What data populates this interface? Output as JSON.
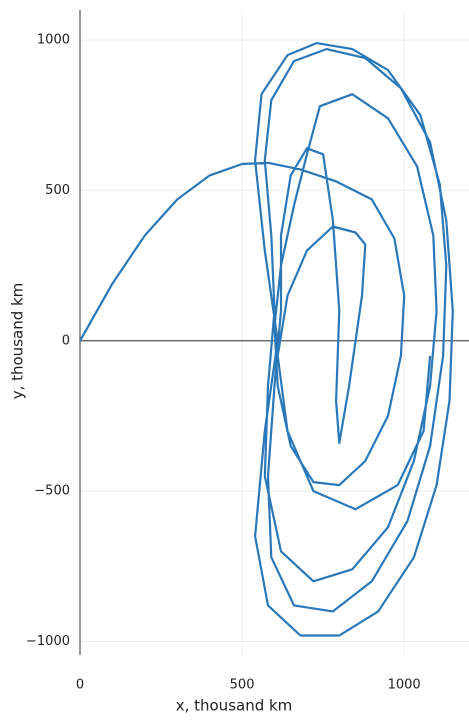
{
  "chart_data": {
    "type": "line",
    "x_label": "x, thousand km",
    "y_label": "y, thousand km",
    "x": [
      0,
      100,
      200,
      300,
      400,
      500,
      580,
      680,
      790,
      900,
      970,
      1000,
      990,
      950,
      880,
      800,
      720,
      650,
      610,
      600,
      620,
      660,
      700,
      740,
      840,
      950,
      1040,
      1090,
      1100,
      1080,
      1030,
      950,
      840,
      720,
      620,
      570,
      580,
      600,
      590,
      570,
      590,
      660,
      760,
      880,
      990,
      1080,
      1130,
      1150,
      1140,
      1100,
      1030,
      920,
      800,
      680,
      580,
      540,
      570,
      610,
      570,
      540,
      560,
      640,
      730,
      840,
      950,
      1050,
      1110,
      1130,
      1120,
      1080,
      1010,
      900,
      780,
      660,
      590,
      580,
      600,
      620,
      620,
      650,
      700,
      750,
      780,
      800,
      790,
      800,
      830,
      870,
      880,
      850,
      780,
      700,
      640,
      610,
      640,
      720,
      850,
      980,
      1060,
      1080
    ],
    "series": [
      {
        "color": "#2a78b8",
        "values": [
          0,
          190,
          350,
          470,
          550,
          588,
          592,
          570,
          530,
          470,
          340,
          150,
          -50,
          -250,
          -400,
          -480,
          -470,
          -350,
          -150,
          50,
          250,
          450,
          620,
          780,
          820,
          740,
          580,
          350,
          100,
          -150,
          -400,
          -620,
          -760,
          -800,
          -700,
          -450,
          -150,
          100,
          350,
          600,
          800,
          930,
          970,
          940,
          840,
          660,
          400,
          100,
          -200,
          -480,
          -720,
          -900,
          -980,
          -980,
          -880,
          -650,
          -300,
          0,
          300,
          600,
          820,
          950,
          990,
          970,
          900,
          750,
          520,
          250,
          -50,
          -350,
          -600,
          -800,
          -900,
          -880,
          -720,
          -450,
          -150,
          100,
          350,
          550,
          640,
          620,
          400,
          100,
          -200,
          -340,
          -150,
          150,
          320,
          360,
          380,
          300,
          150,
          -50,
          -300,
          -500,
          -560,
          -480,
          -300,
          -50
        ]
      }
    ],
    "xlim": [
      0,
      1200
    ],
    "ylim": [
      -1045,
      1100
    ],
    "xticks": [
      0,
      500,
      1000
    ],
    "yticks": [
      {
        "value": -1000,
        "label": "−1000"
      },
      {
        "value": -500,
        "label": "−500"
      },
      0,
      500,
      1000
    ],
    "grid": true
  }
}
